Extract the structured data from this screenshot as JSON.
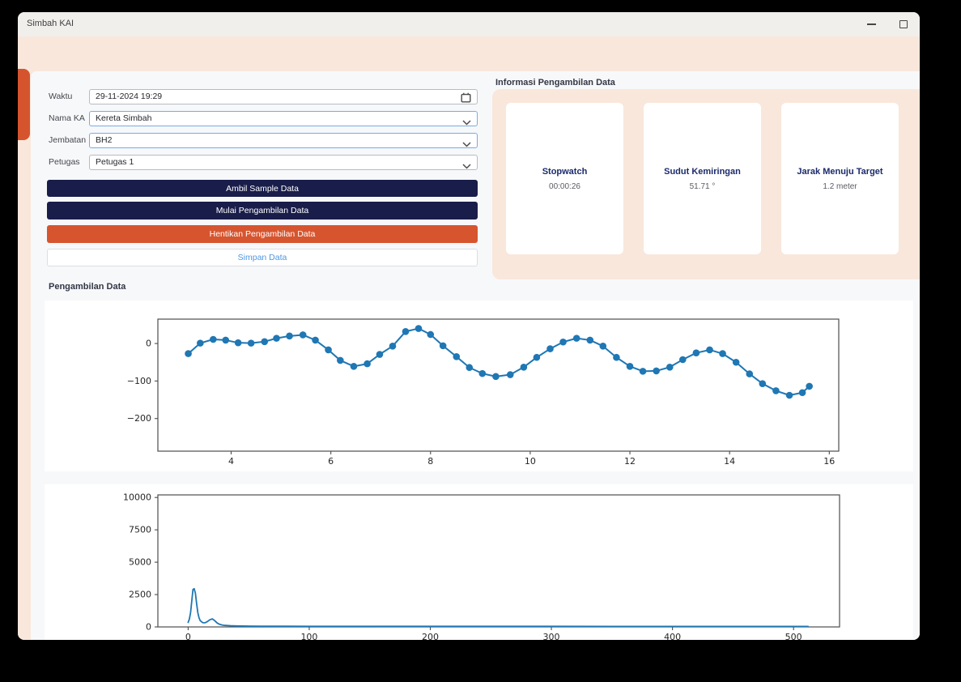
{
  "window": {
    "title": "Simbah KAI",
    "controls": [
      "minimize-icon",
      "maximize-icon"
    ]
  },
  "form": {
    "fields": [
      {
        "label": "Waktu",
        "value": "29-11-2024 19:29",
        "control": "datetime",
        "icon": "calendar-icon"
      },
      {
        "label": "Nama KA",
        "value": "Kereta Simbah",
        "control": "combobox",
        "icon": "chevron-down-icon"
      },
      {
        "label": "Jembatan",
        "value": "BH2",
        "control": "combobox",
        "icon": "chevron-down-icon"
      },
      {
        "label": "Petugas",
        "value": "Petugas 1",
        "control": "combobox",
        "icon": "chevron-down-icon"
      }
    ],
    "buttons": [
      {
        "label": "Ambil Sample Data",
        "variant": "navy"
      },
      {
        "label": "Mulai Pengambilan Data",
        "variant": "navy"
      },
      {
        "label": "Hentikan Pengambilan Data",
        "variant": "orange"
      },
      {
        "label": "Simpan Data",
        "variant": "outline"
      }
    ]
  },
  "info_panel": {
    "title": "Informasi Pengambilan Data",
    "cards": [
      {
        "title": "Stopwatch",
        "value": "00:00:26"
      },
      {
        "title": "Sudut Kemiringan",
        "value": "51.71 °"
      },
      {
        "title": "Jarak Menuju Target",
        "value": "1.2 meter"
      }
    ]
  },
  "charts_section": {
    "title": "Pengambilan Data"
  },
  "colors": {
    "navy_button": "#191d4a",
    "orange_button": "#d6552f",
    "save_text_blue": "#4f97e3",
    "peach_panel": "#f9e7dc",
    "light_panel": "#f7f8fa",
    "card_title_navy": "#1b2a6b",
    "drawer_tab_orange": "#d5542e",
    "chart_line": "#1f77b4"
  },
  "chart_data": [
    {
      "type": "line",
      "marker": true,
      "color": "#1f77b4",
      "line_width": 2,
      "title": "",
      "xlabel": "",
      "ylabel": "",
      "grid": false,
      "legend": null,
      "xlim": [
        2.53,
        16.19
      ],
      "ylim": [
        -287,
        65
      ],
      "xticks": [
        4,
        6,
        8,
        10,
        12,
        14,
        16
      ],
      "xtick_labels": [
        "4",
        "6",
        "8",
        "10",
        "12",
        "14",
        "16"
      ],
      "yticks": [
        0,
        -100,
        -200
      ],
      "ytick_labels": [
        "0",
        "−100",
        "−200"
      ],
      "x": [
        3.14,
        3.38,
        3.64,
        3.89,
        4.14,
        4.4,
        4.67,
        4.91,
        5.17,
        5.44,
        5.69,
        5.95,
        6.19,
        6.46,
        6.73,
        6.98,
        7.24,
        7.5,
        7.76,
        8.0,
        8.25,
        8.52,
        8.78,
        9.04,
        9.31,
        9.6,
        9.87,
        10.13,
        10.4,
        10.66,
        10.93,
        11.2,
        11.46,
        11.73,
        12.0,
        12.26,
        12.53,
        12.8,
        13.06,
        13.33,
        13.6,
        13.86,
        14.13,
        14.4,
        14.66,
        14.93,
        15.2,
        15.46,
        15.6
      ],
      "y": [
        -27,
        1,
        11,
        9,
        2,
        1,
        5,
        14,
        20,
        23,
        9,
        -17,
        -45,
        -61,
        -54,
        -29,
        -7,
        32,
        40,
        24,
        -6,
        -35,
        -64,
        -80,
        -88,
        -83,
        -63,
        -37,
        -14,
        4,
        14,
        9,
        -7,
        -37,
        -61,
        -74,
        -73,
        -63,
        -43,
        -25,
        -17,
        -27,
        -50,
        -81,
        -107,
        -126,
        -138,
        -131,
        -114
      ]
    },
    {
      "type": "line",
      "marker": false,
      "color": "#1f77b4",
      "line_width": 1.8,
      "title": "",
      "xlabel": "",
      "ylabel": "",
      "grid": false,
      "legend": null,
      "xlim": [
        -25,
        538
      ],
      "ylim": [
        0,
        10200
      ],
      "xticks": [
        0,
        100,
        200,
        300,
        400,
        500
      ],
      "xtick_labels": [
        "0",
        "100",
        "200",
        "300",
        "400",
        "500"
      ],
      "yticks": [
        0,
        2500,
        5000,
        7500,
        10000
      ],
      "ytick_labels": [
        "0",
        "2500",
        "5000",
        "7500",
        "10000"
      ],
      "x": [
        0,
        1,
        2,
        3,
        4,
        5,
        6,
        7,
        8,
        9,
        10,
        12,
        14,
        16,
        18,
        20,
        22,
        24,
        26,
        28,
        30,
        35,
        40,
        50,
        60,
        80,
        100,
        150,
        200,
        250,
        300,
        350,
        400,
        450,
        500,
        512
      ],
      "y": [
        350,
        600,
        1100,
        2000,
        2900,
        2950,
        2600,
        1800,
        1100,
        700,
        480,
        330,
        320,
        420,
        560,
        620,
        480,
        300,
        200,
        150,
        120,
        90,
        75,
        60,
        55,
        50,
        48,
        45,
        43,
        42,
        42,
        41,
        41,
        40,
        40,
        40
      ]
    }
  ]
}
